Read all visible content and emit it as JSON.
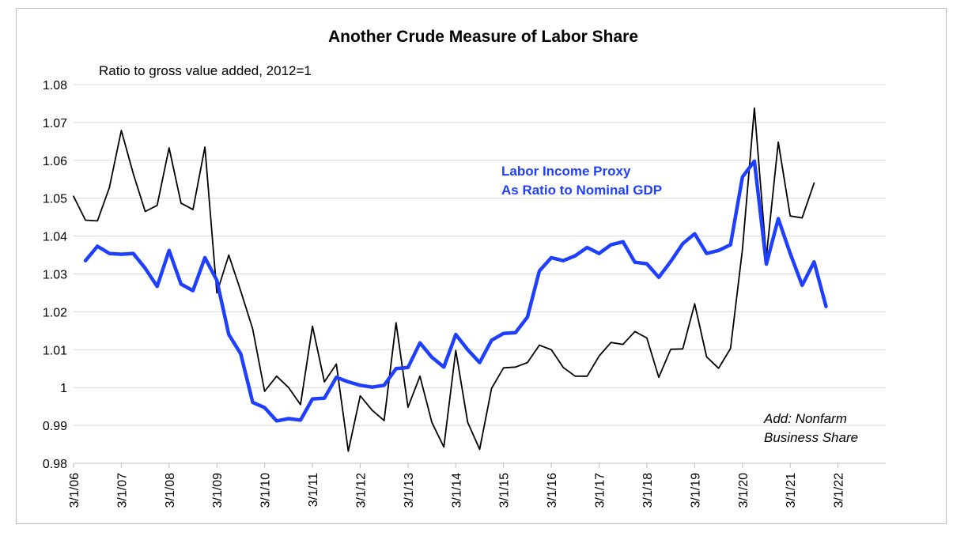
{
  "chart_data": {
    "type": "line",
    "title": "Another Crude Measure of Labor Share",
    "subtitle": "Ratio to gross value added, 2012=1",
    "xlabel": "",
    "ylabel": "",
    "ylim": [
      0.98,
      1.08
    ],
    "yticks": [
      "0.98",
      "0.99",
      "1",
      "1.01",
      "1.02",
      "1.03",
      "1.04",
      "1.05",
      "1.06",
      "1.07",
      "1.08"
    ],
    "yticks_values": [
      0.98,
      0.99,
      1.0,
      1.01,
      1.02,
      1.03,
      1.04,
      1.05,
      1.06,
      1.07,
      1.08
    ],
    "xticks": [
      "3/1/06",
      "3/1/07",
      "3/1/08",
      "3/1/09",
      "3/1/10",
      "3/1/11",
      "3/1/12",
      "3/1/13",
      "3/1/14",
      "3/1/15",
      "3/1/16",
      "3/1/17",
      "3/1/18",
      "3/1/19",
      "3/1/20",
      "3/1/21",
      "3/1/22"
    ],
    "xlim": [
      2006.0,
      2023.0
    ],
    "grid": "horizontal",
    "legend": "none",
    "series": [
      {
        "name": "Add: Nonfarm Business Share",
        "color": "#000000",
        "x": [
          2006.0,
          2006.25,
          2006.5,
          2006.75,
          2007.0,
          2007.25,
          2007.5,
          2007.75,
          2008.0,
          2008.25,
          2008.5,
          2008.75,
          2009.0,
          2009.25,
          2009.5,
          2009.75,
          2010.0,
          2010.25,
          2010.5,
          2010.75,
          2011.0,
          2011.25,
          2011.5,
          2011.75,
          2012.0,
          2012.25,
          2012.5,
          2012.75,
          2013.0,
          2013.25,
          2013.5,
          2013.75,
          2014.0,
          2014.25,
          2014.5,
          2014.75,
          2015.0,
          2015.25,
          2015.5,
          2015.75,
          2016.0,
          2016.25,
          2016.5,
          2016.75,
          2017.0,
          2017.25,
          2017.5,
          2017.75,
          2018.0,
          2018.25,
          2018.5,
          2018.75,
          2019.0,
          2019.25,
          2019.5,
          2019.75,
          2020.0,
          2020.25,
          2020.5,
          2020.75,
          2021.0,
          2021.25,
          2021.5
        ],
        "values": [
          1.0505,
          1.0442,
          1.044,
          1.0528,
          1.0679,
          1.0565,
          1.0465,
          1.0481,
          1.0633,
          1.0487,
          1.047,
          1.0635,
          1.025,
          1.035,
          1.0255,
          1.0155,
          0.999,
          1.003,
          1.0,
          0.9955,
          1.0162,
          1.0015,
          1.0062,
          0.9832,
          0.9978,
          0.994,
          0.9913,
          1.0171,
          0.9948,
          1.003,
          0.9908,
          0.9843,
          1.0098,
          0.9908,
          0.9837,
          0.9998,
          1.0052,
          1.0054,
          1.0066,
          1.0112,
          1.01,
          1.0053,
          1.003,
          1.003,
          1.0083,
          1.0119,
          1.0114,
          1.0148,
          1.0131,
          1.0027,
          1.0101,
          1.0102,
          1.0221,
          1.0081,
          1.0051,
          1.0103,
          1.0365,
          1.0738,
          1.0345,
          1.0648,
          1.0453,
          1.0448,
          1.054
        ]
      },
      {
        "name": "Labor Income Proxy As Ratio to Nominal GDP",
        "color": "#1f3fff",
        "x": [
          2006.25,
          2006.5,
          2006.75,
          2007.0,
          2007.25,
          2007.5,
          2007.75,
          2008.0,
          2008.25,
          2008.5,
          2008.75,
          2009.0,
          2009.25,
          2009.5,
          2009.75,
          2010.0,
          2010.25,
          2010.5,
          2010.75,
          2011.0,
          2011.25,
          2011.5,
          2011.75,
          2012.0,
          2012.25,
          2012.5,
          2012.75,
          2013.0,
          2013.25,
          2013.5,
          2013.75,
          2014.0,
          2014.25,
          2014.5,
          2014.75,
          2015.0,
          2015.25,
          2015.5,
          2015.75,
          2016.0,
          2016.25,
          2016.5,
          2016.75,
          2017.0,
          2017.25,
          2017.5,
          2017.75,
          2018.0,
          2018.25,
          2018.5,
          2018.75,
          2019.0,
          2019.25,
          2019.5,
          2019.75,
          2020.0,
          2020.25,
          2020.5,
          2020.75,
          2021.0,
          2021.25,
          2021.5,
          2021.75
        ],
        "values": [
          1.0335,
          1.0373,
          1.0354,
          1.0352,
          1.0354,
          1.0315,
          1.0267,
          1.0362,
          1.0273,
          1.0256,
          1.0343,
          1.0283,
          1.014,
          1.0089,
          0.9961,
          0.9947,
          0.9912,
          0.9918,
          0.9914,
          0.997,
          0.9972,
          1.0027,
          1.0015,
          1.0006,
          1.0001,
          1.0006,
          1.005,
          1.0053,
          1.0118,
          1.008,
          1.0054,
          1.014,
          1.01,
          1.0066,
          1.0125,
          1.0143,
          1.0145,
          1.0186,
          1.0308,
          1.0343,
          1.0335,
          1.0348,
          1.037,
          1.0354,
          1.0377,
          1.0385,
          1.0331,
          1.0327,
          1.0291,
          1.0333,
          1.038,
          1.0406,
          1.0354,
          1.0362,
          1.0377,
          1.0556,
          1.0598,
          1.0326,
          1.0446,
          1.0354,
          1.027,
          1.0332,
          1.0214
        ]
      }
    ],
    "annotations": [
      {
        "series": 1,
        "lines": [
          "Labor Income Proxy",
          "As Ratio to Nominal GDP"
        ]
      },
      {
        "series": 0,
        "lines": [
          "Add: Nonfarm",
          "Business Share"
        ]
      }
    ]
  }
}
